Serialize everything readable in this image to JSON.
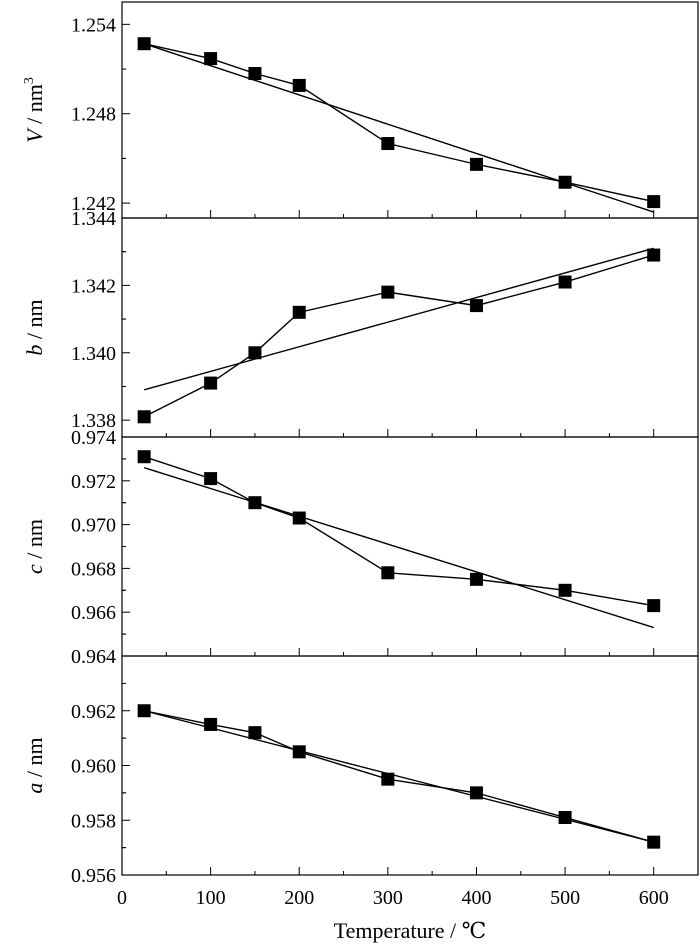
{
  "chart_data": {
    "type": "line",
    "xlabel": "Temperature / ℃",
    "xlim": [
      0,
      650
    ],
    "xticks": [
      0,
      100,
      200,
      300,
      400,
      500,
      600
    ],
    "x": [
      25,
      100,
      150,
      200,
      300,
      400,
      500,
      600
    ],
    "panels": [
      {
        "ylabel_var": "V",
        "ylabel_unit": " / nm",
        "ylabel_sup": "3",
        "ylim": [
          1.241,
          1.2555
        ],
        "yticks": [
          1.242,
          1.248,
          1.254
        ],
        "ytick_labels": [
          "1.242",
          "1.248",
          "1.254"
        ],
        "values": [
          1.2527,
          1.2517,
          1.2507,
          1.2499,
          1.246,
          1.2446,
          1.2434,
          1.2421
        ],
        "fit": {
          "x": [
            25,
            600
          ],
          "y": [
            1.2527,
            1.2414
          ]
        }
      },
      {
        "ylabel_var": "b",
        "ylabel_unit": " / nm",
        "ylabel_sup": "",
        "ylim": [
          1.3375,
          1.344
        ],
        "yticks": [
          1.338,
          1.34,
          1.342,
          1.344
        ],
        "ytick_labels": [
          "1.338",
          "1.340",
          "1.342",
          "1.344"
        ],
        "values": [
          1.3381,
          1.3391,
          1.34,
          1.3412,
          1.3418,
          1.3414,
          1.3421,
          1.3429
        ],
        "fit": {
          "x": [
            25,
            600
          ],
          "y": [
            1.3389,
            1.3431
          ]
        }
      },
      {
        "ylabel_var": "c",
        "ylabel_unit": " / nm",
        "ylabel_sup": "",
        "ylim": [
          0.964,
          0.974
        ],
        "yticks": [
          0.964,
          0.966,
          0.968,
          0.97,
          0.972,
          0.974
        ],
        "ytick_labels": [
          "0.964",
          "0.966",
          "0.968",
          "0.970",
          "0.972",
          "0.974"
        ],
        "values": [
          0.9731,
          0.9721,
          0.971,
          0.9703,
          0.9678,
          0.9675,
          0.967,
          0.9663
        ],
        "fit": {
          "x": [
            25,
            600
          ],
          "y": [
            0.9726,
            0.9653
          ]
        }
      },
      {
        "ylabel_var": "a",
        "ylabel_unit": " / nm",
        "ylabel_sup": "",
        "ylim": [
          0.956,
          0.964
        ],
        "yticks": [
          0.956,
          0.958,
          0.96,
          0.962
        ],
        "ytick_labels": [
          "0.956",
          "0.958",
          "0.960",
          "0.962"
        ],
        "values": [
          0.962,
          0.9615,
          0.9612,
          0.9605,
          0.9595,
          0.959,
          0.9581,
          0.9572
        ],
        "fit": {
          "x": [
            25,
            600
          ],
          "y": [
            0.962,
            0.9572
          ]
        }
      }
    ]
  }
}
